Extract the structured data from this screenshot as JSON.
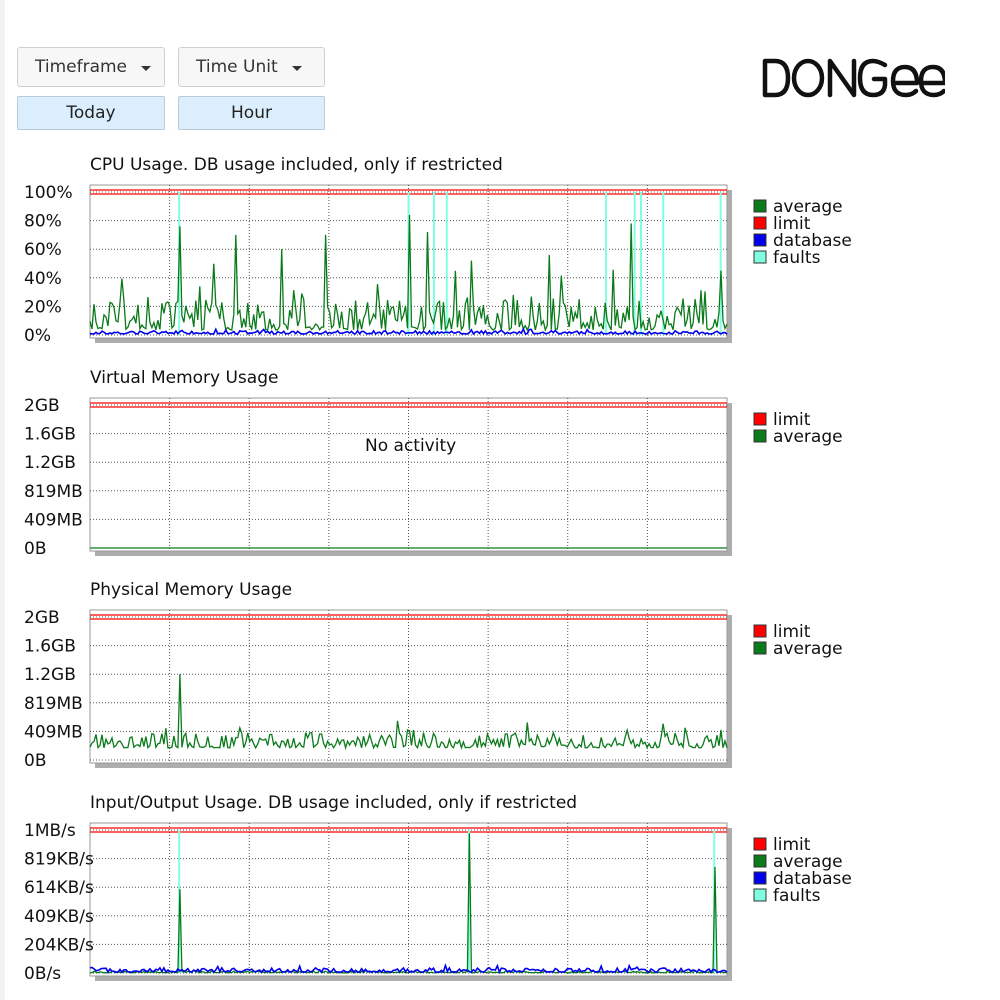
{
  "controls": {
    "timeframe_label": "Timeframe",
    "time_unit_label": "Time Unit",
    "timeframe_value": "Today",
    "time_unit_value": "Hour"
  },
  "brand": {
    "logo_text": "DONGEE"
  },
  "colors": {
    "limit": "#ff0000",
    "average": "#0a7a1a",
    "database": "#0000ee",
    "faults": "#80ffe0"
  },
  "chart_data": [
    {
      "type": "line",
      "title": "CPU Usage. DB usage included, only if restricted",
      "yticks": [
        "100%",
        "80%",
        "60%",
        "40%",
        "20%",
        "0%"
      ],
      "ylim": [
        0,
        100
      ],
      "unit": "%",
      "limit": 100,
      "legend": [
        "average",
        "limit",
        "database",
        "faults"
      ],
      "series": [
        {
          "name": "average",
          "baseline": 6,
          "noise": 10,
          "spikes": [
            [
              0.14,
              76
            ],
            [
              0.23,
              70
            ],
            [
              0.3,
              60
            ],
            [
              0.37,
              70
            ],
            [
              0.5,
              84
            ],
            [
              0.53,
              72
            ],
            [
              0.6,
              52
            ],
            [
              0.72,
              56
            ],
            [
              0.85,
              78
            ],
            [
              0.99,
              45
            ]
          ]
        },
        {
          "name": "database",
          "baseline": 1,
          "noise": 1,
          "spikes": []
        },
        {
          "name": "faults",
          "spikes": [
            [
              0.14,
              100
            ],
            [
              0.5,
              100
            ],
            [
              0.54,
              100
            ],
            [
              0.56,
              100
            ],
            [
              0.81,
              100
            ],
            [
              0.855,
              100
            ],
            [
              0.865,
              100
            ],
            [
              0.9,
              100
            ],
            [
              0.99,
              100
            ]
          ]
        }
      ]
    },
    {
      "type": "line",
      "title": "Virtual Memory Usage",
      "yticks": [
        "2GB",
        "1.6GB",
        "1.2GB",
        "819MB",
        "409MB",
        "0B"
      ],
      "ylim": [
        0,
        2048
      ],
      "unit": "MB",
      "limit": 2048,
      "legend": [
        "limit",
        "average"
      ],
      "annotation": "No activity",
      "series": [
        {
          "name": "average",
          "baseline": 0,
          "noise": 0,
          "spikes": []
        }
      ]
    },
    {
      "type": "line",
      "title": "Physical Memory Usage",
      "yticks": [
        "2GB",
        "1.6GB",
        "1.2GB",
        "819MB",
        "409MB",
        "0B"
      ],
      "ylim": [
        0,
        2048
      ],
      "unit": "MB",
      "limit": 2048,
      "legend": [
        "limit",
        "average"
      ],
      "series": [
        {
          "name": "average",
          "baseline": 200,
          "noise": 100,
          "spikes": [
            [
              0.14,
              1230
            ],
            [
              0.5,
              420
            ],
            [
              0.54,
              380
            ],
            [
              0.99,
              430
            ]
          ]
        }
      ]
    },
    {
      "type": "line",
      "title": "Input/Output Usage. DB usage included, only if restricted",
      "yticks": [
        "1MB/s",
        "819KB/s",
        "614KB/s",
        "409KB/s",
        "204KB/s",
        "0B/s"
      ],
      "ylim": [
        0,
        1024
      ],
      "unit": "KB/s",
      "limit": 1024,
      "legend": [
        "limit",
        "average",
        "database",
        "faults"
      ],
      "series": [
        {
          "name": "average",
          "baseline": 3,
          "noise": 5,
          "spikes": [
            [
              0.14,
              600
            ],
            [
              0.595,
              1000
            ],
            [
              0.98,
              760
            ]
          ]
        },
        {
          "name": "database",
          "baseline": 10,
          "noise": 14,
          "spikes": []
        },
        {
          "name": "faults",
          "spikes": [
            [
              0.14,
              1024
            ],
            [
              0.595,
              1024
            ],
            [
              0.98,
              1024
            ]
          ]
        }
      ]
    }
  ]
}
